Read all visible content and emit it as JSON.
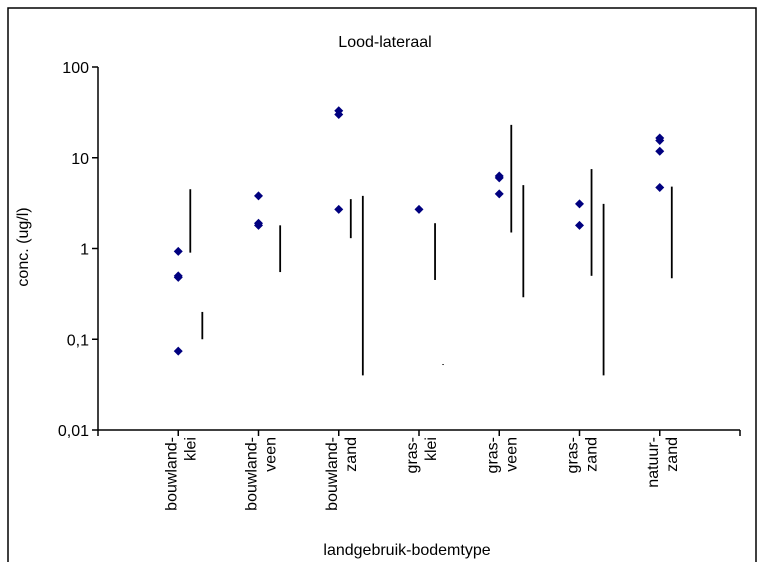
{
  "chart_data": {
    "type": "scatter",
    "title": "Lood-lateraal",
    "xlabel": "landgebruik-bodemtype",
    "ylabel": "conc. (ug/l)",
    "yscale": "log",
    "ylim": [
      0.01,
      100
    ],
    "yticks": [
      {
        "value": 100,
        "label": "100"
      },
      {
        "value": 10,
        "label": "10"
      },
      {
        "value": 1,
        "label": "1"
      },
      {
        "value": 0.1,
        "label": "0,1"
      },
      {
        "value": 0.01,
        "label": "0,01"
      }
    ],
    "grid": false,
    "legend": "none",
    "colors": {
      "points": "#00007f",
      "ranges": "#000000",
      "axis": "#000000"
    },
    "categories": [
      {
        "line1": "bouwland-",
        "line2": "klei"
      },
      {
        "line1": "bouwland-",
        "line2": "veen"
      },
      {
        "line1": "bouwland-",
        "line2": "zand"
      },
      {
        "line1": "gras-",
        "line2": "klei"
      },
      {
        "line1": "gras-",
        "line2": "veen"
      },
      {
        "line1": "gras-",
        "line2": "zand"
      },
      {
        "line1": "natuur-",
        "line2": "zand"
      }
    ],
    "points": [
      {
        "category": 0,
        "values": [
          0.93,
          0.5,
          0.48,
          0.074
        ]
      },
      {
        "category": 1,
        "values": [
          3.8,
          1.9,
          1.8
        ]
      },
      {
        "category": 2,
        "values": [
          33,
          30,
          2.7
        ]
      },
      {
        "category": 3,
        "values": [
          2.7
        ]
      },
      {
        "category": 4,
        "values": [
          6.3,
          6.0,
          4.0
        ]
      },
      {
        "category": 5,
        "values": [
          3.1,
          1.8
        ]
      },
      {
        "category": 6,
        "values": [
          16.5,
          15.5,
          11.8,
          4.7
        ]
      }
    ],
    "ranges": [
      {
        "category": 0,
        "offset": 0.15,
        "low": 0.9,
        "high": 4.5
      },
      {
        "category": 0,
        "offset": 0.3,
        "low": 0.1,
        "high": 0.2
      },
      {
        "category": 1,
        "offset": 0.27,
        "low": 0.55,
        "high": 1.8
      },
      {
        "category": 2,
        "offset": 0.15,
        "low": 1.3,
        "high": 3.5
      },
      {
        "category": 2,
        "offset": 0.3,
        "low": 0.04,
        "high": 3.8
      },
      {
        "category": 3,
        "offset": 0.2,
        "low": 0.45,
        "high": 1.9
      },
      {
        "category": 3,
        "offset": 0.3,
        "low": 0.052,
        "high": 0.053
      },
      {
        "category": 4,
        "offset": 0.15,
        "low": 1.5,
        "high": 23
      },
      {
        "category": 4,
        "offset": 0.3,
        "low": 0.29,
        "high": 5.0
      },
      {
        "category": 5,
        "offset": 0.15,
        "low": 0.5,
        "high": 7.5
      },
      {
        "category": 5,
        "offset": 0.3,
        "low": 0.04,
        "high": 3.1
      },
      {
        "category": 6,
        "offset": 0.15,
        "low": 0.47,
        "high": 4.8
      }
    ]
  }
}
